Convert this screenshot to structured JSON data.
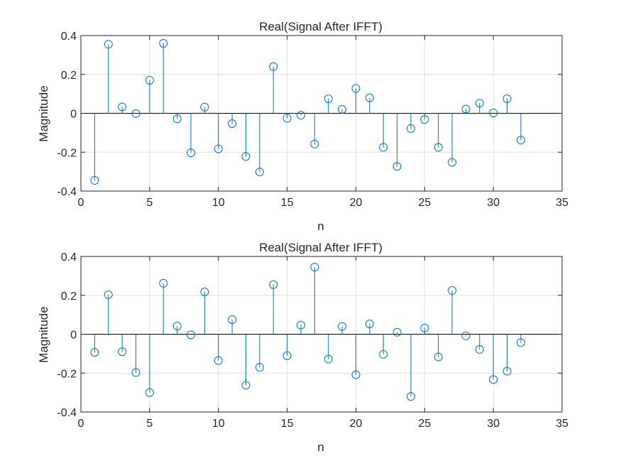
{
  "chart_data": [
    {
      "type": "stem",
      "title": "Real(Signal After IFFT)",
      "xlabel": "n",
      "ylabel": "Magnitude",
      "xlim": [
        0,
        35
      ],
      "ylim": [
        -0.4,
        0.4
      ],
      "xticks": [
        "0",
        "5",
        "10",
        "15",
        "20",
        "25",
        "30",
        "35"
      ],
      "yticks": [
        "-0.4",
        "-0.2",
        "0",
        "0.2",
        "0.4"
      ],
      "grid": true,
      "color": "#0072BD",
      "x": [
        1,
        2,
        3,
        4,
        5,
        6,
        7,
        8,
        9,
        10,
        11,
        12,
        13,
        14,
        15,
        16,
        17,
        18,
        19,
        20,
        21,
        22,
        23,
        24,
        25,
        26,
        27,
        28,
        29,
        30,
        31,
        32
      ],
      "values": [
        -0.345,
        0.355,
        0.033,
        -0.002,
        0.17,
        0.36,
        -0.028,
        -0.203,
        0.032,
        -0.183,
        -0.053,
        -0.222,
        -0.302,
        0.24,
        -0.025,
        -0.01,
        -0.158,
        0.075,
        0.02,
        0.128,
        0.08,
        -0.175,
        -0.273,
        -0.078,
        -0.032,
        -0.175,
        -0.252,
        0.022,
        0.052,
        0.002,
        0.075,
        -0.138
      ]
    },
    {
      "type": "stem",
      "title": "Real(Signal After IFFT)",
      "xlabel": "n",
      "ylabel": "Magnitude",
      "xlim": [
        0,
        35
      ],
      "ylim": [
        -0.4,
        0.4
      ],
      "xticks": [
        "0",
        "5",
        "10",
        "15",
        "20",
        "25",
        "30",
        "35"
      ],
      "yticks": [
        "-0.4",
        "-0.2",
        "0",
        "0.2",
        "0.4"
      ],
      "grid": true,
      "color": "#0072BD",
      "x": [
        1,
        2,
        3,
        4,
        5,
        6,
        7,
        8,
        9,
        10,
        11,
        12,
        13,
        14,
        15,
        16,
        17,
        18,
        19,
        20,
        21,
        22,
        23,
        24,
        25,
        26,
        27,
        28,
        29,
        30,
        31,
        32
      ],
      "values": [
        -0.093,
        0.203,
        -0.09,
        -0.197,
        -0.3,
        0.262,
        0.042,
        -0.003,
        0.218,
        -0.135,
        0.075,
        -0.262,
        -0.17,
        0.255,
        -0.11,
        0.047,
        0.345,
        -0.128,
        0.04,
        -0.208,
        0.053,
        -0.103,
        0.01,
        -0.32,
        0.032,
        -0.117,
        0.225,
        -0.008,
        -0.078,
        -0.233,
        -0.19,
        -0.043
      ]
    }
  ]
}
